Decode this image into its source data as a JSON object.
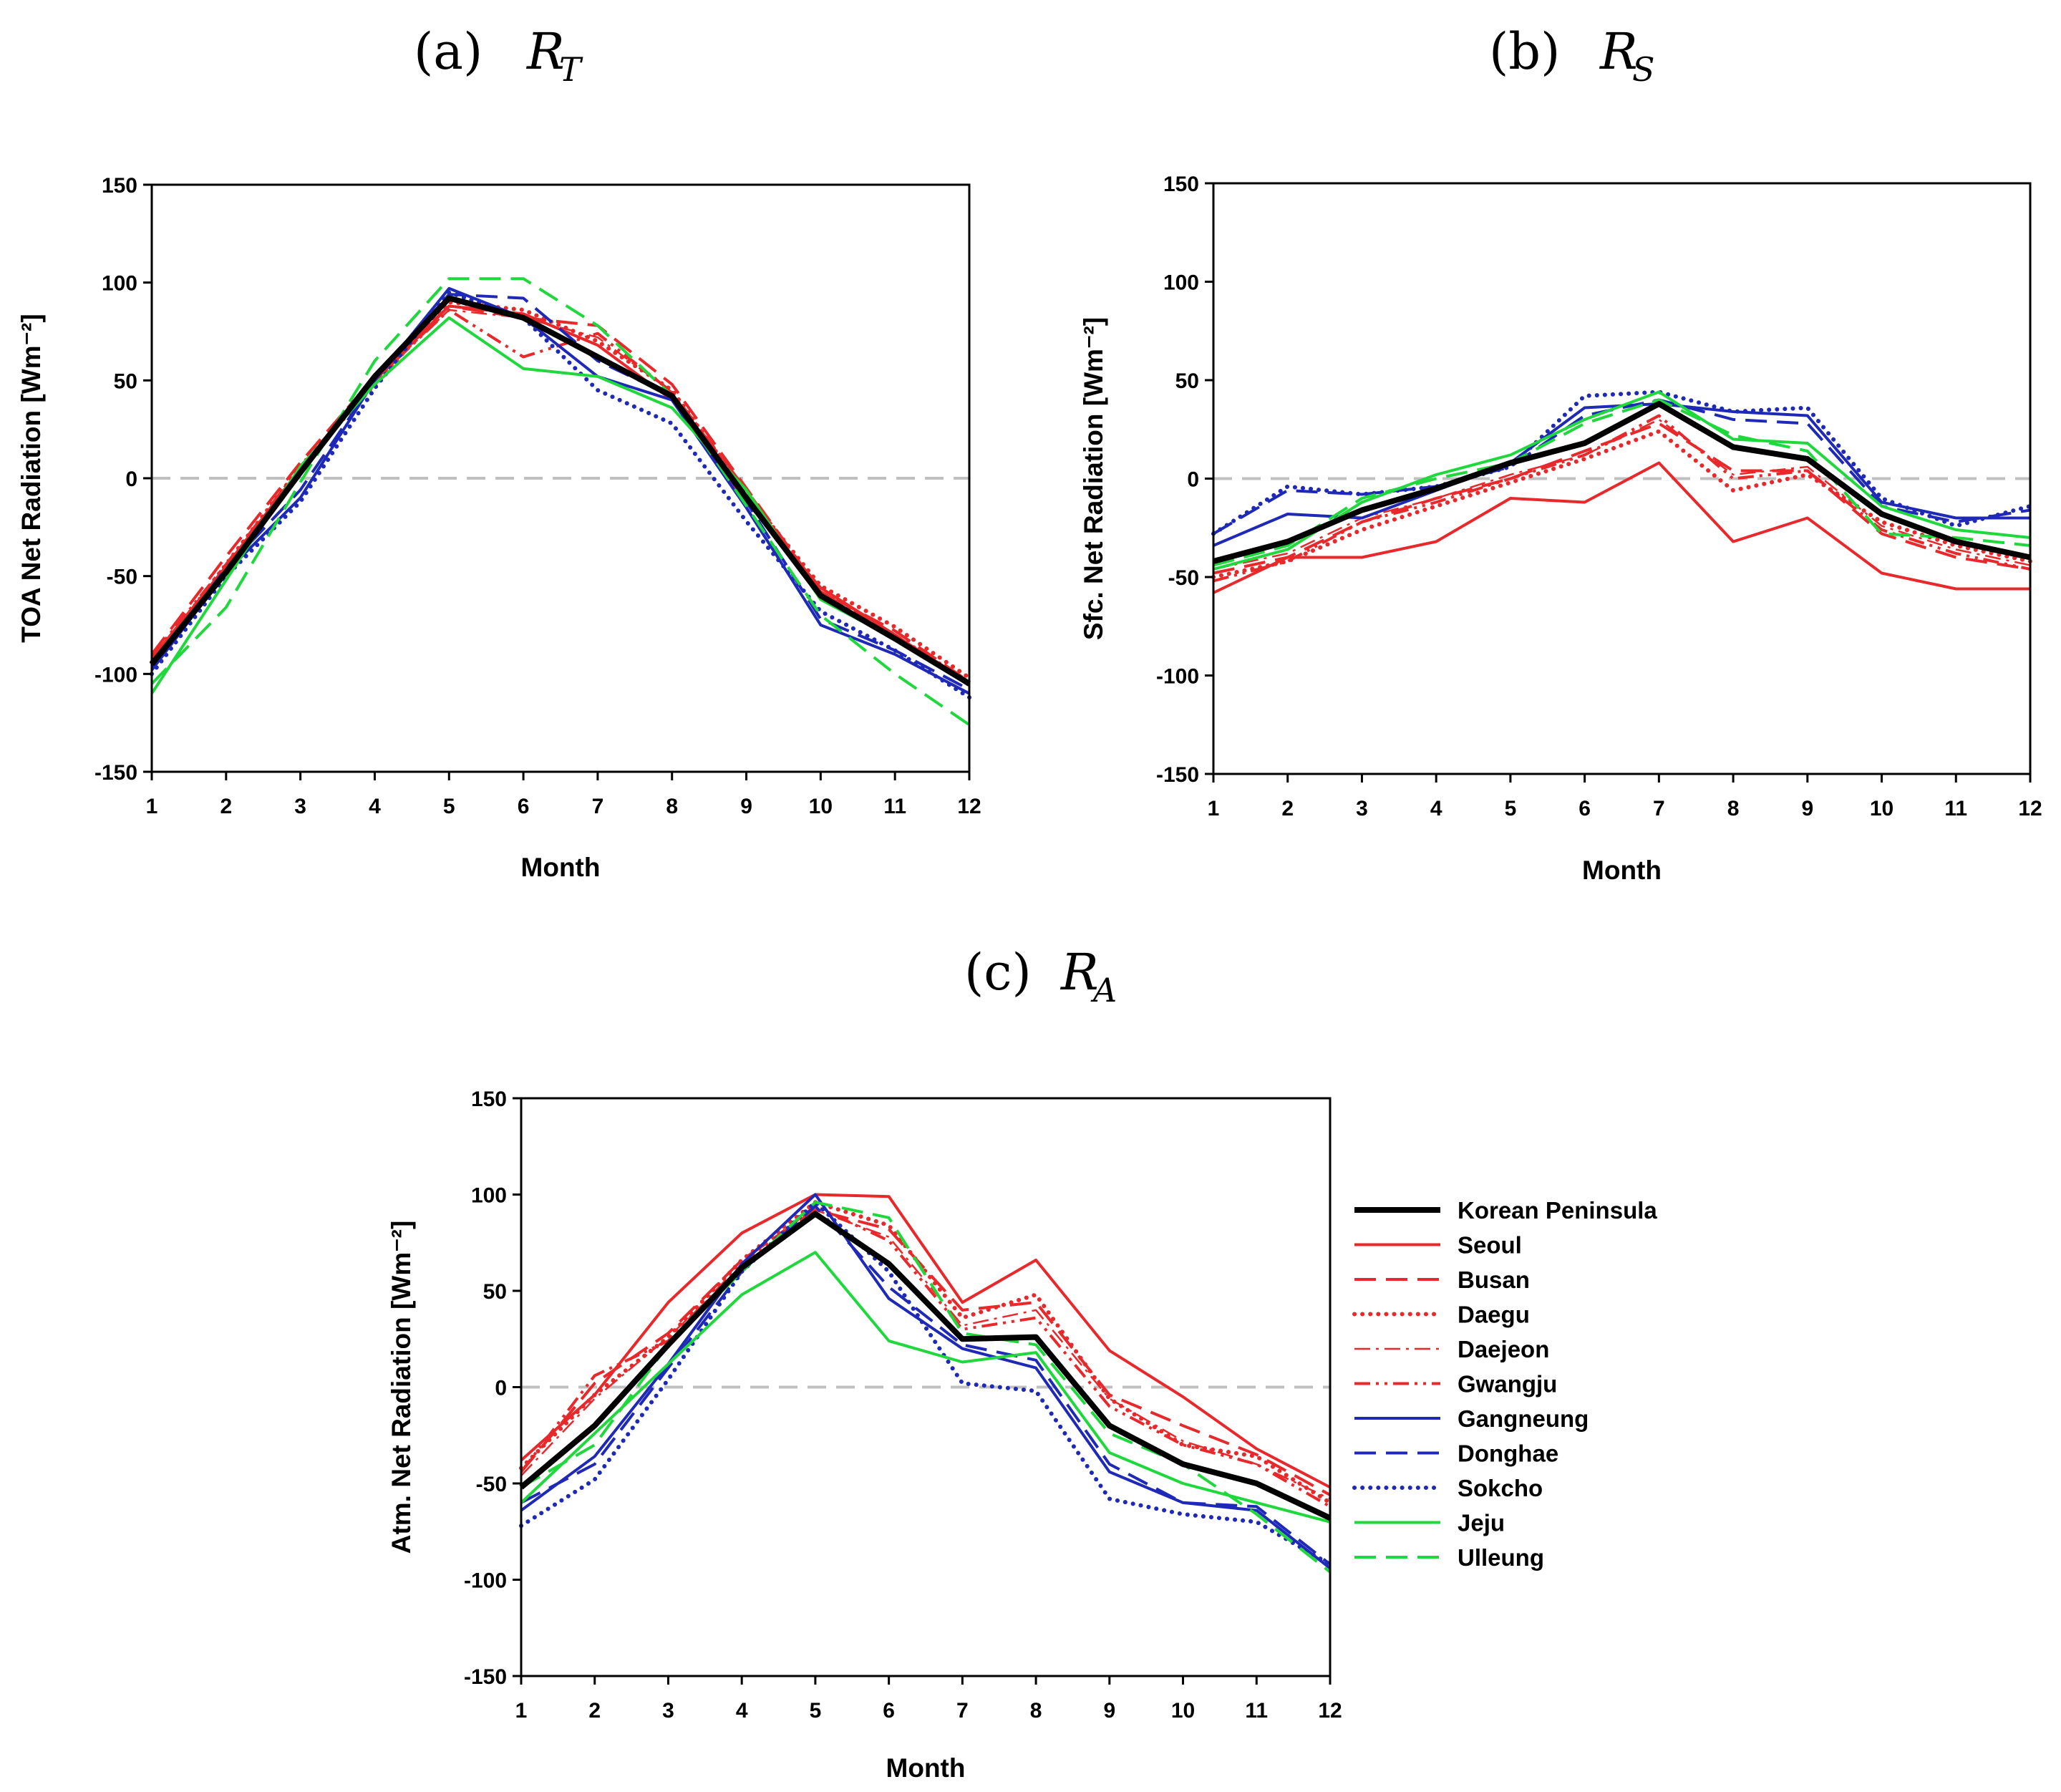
{
  "figure": {
    "colors": {
      "black": "#000000",
      "red": "#e8282a",
      "blue": "#1f29b8",
      "green": "#1ed83c",
      "zero": "#c0c0c0"
    },
    "legend": [
      {
        "name": "Korean Peninsula",
        "color": "black",
        "style": "thick"
      },
      {
        "name": "Seoul",
        "color": "red",
        "style": "solid"
      },
      {
        "name": "Busan",
        "color": "red",
        "style": "longdash"
      },
      {
        "name": "Daegu",
        "color": "red",
        "style": "dot"
      },
      {
        "name": "Daejeon",
        "color": "red",
        "style": "dashdot-thin"
      },
      {
        "name": "Gwangju",
        "color": "red",
        "style": "dashdotdot"
      },
      {
        "name": "Gangneung",
        "color": "blue",
        "style": "solid"
      },
      {
        "name": "Donghae",
        "color": "blue",
        "style": "longdash"
      },
      {
        "name": "Sokcho",
        "color": "blue",
        "style": "dot"
      },
      {
        "name": "Jeju",
        "color": "green",
        "style": "solid"
      },
      {
        "name": "Ulleung",
        "color": "green",
        "style": "longdash"
      }
    ]
  },
  "chart_data": [
    {
      "id": "a",
      "type": "line",
      "panel_label": "(a)",
      "symbol": "R",
      "subscript": "T",
      "xlabel": "Month",
      "ylabel": "TOA Net Radiation [Wm⁻²]",
      "ylim": [
        -150,
        150
      ],
      "xlim": [
        1,
        12
      ],
      "x": [
        1,
        2,
        3,
        4,
        5,
        6,
        7,
        8,
        9,
        10,
        11,
        12
      ],
      "yticks": [
        -150,
        -100,
        -50,
        0,
        50,
        100,
        150
      ],
      "series": [
        {
          "name": "Korean Peninsula",
          "values": [
            -95,
            -48,
            3,
            52,
            92,
            82,
            62,
            42,
            -10,
            -60,
            -82,
            -105
          ]
        },
        {
          "name": "Seoul",
          "values": [
            -92,
            -45,
            5,
            50,
            88,
            84,
            68,
            40,
            -12,
            -56,
            -80,
            -106
          ]
        },
        {
          "name": "Busan",
          "values": [
            -90,
            -40,
            8,
            52,
            88,
            82,
            78,
            48,
            -5,
            -58,
            -78,
            -104
          ]
        },
        {
          "name": "Daegu",
          "values": [
            -94,
            -44,
            6,
            48,
            90,
            86,
            70,
            45,
            -8,
            -55,
            -76,
            -102
          ]
        },
        {
          "name": "Daejeon",
          "values": [
            -92,
            -46,
            4,
            50,
            86,
            82,
            72,
            44,
            -6,
            -58,
            -80,
            -104
          ]
        },
        {
          "name": "Gwangju",
          "values": [
            -91,
            -44,
            6,
            50,
            86,
            62,
            74,
            44,
            -6,
            -58,
            -80,
            -104
          ]
        },
        {
          "name": "Gangneung",
          "values": [
            -98,
            -48,
            -10,
            50,
            97,
            82,
            52,
            40,
            -15,
            -75,
            -90,
            -110
          ]
        },
        {
          "name": "Donghae",
          "values": [
            -96,
            -46,
            -6,
            50,
            94,
            92,
            60,
            42,
            -12,
            -72,
            -88,
            -108
          ]
        },
        {
          "name": "Sokcho",
          "values": [
            -100,
            -50,
            -12,
            46,
            95,
            82,
            45,
            28,
            -22,
            -68,
            -88,
            -112
          ]
        },
        {
          "name": "Jeju",
          "values": [
            -110,
            -52,
            6,
            48,
            82,
            56,
            52,
            36,
            -6,
            -62,
            -82,
            -104
          ]
        },
        {
          "name": "Ulleung",
          "values": [
            -105,
            -66,
            -2,
            60,
            102,
            102,
            78,
            42,
            -14,
            -70,
            -100,
            -126
          ]
        }
      ]
    },
    {
      "id": "b",
      "type": "line",
      "panel_label": "(b)",
      "symbol": "R",
      "subscript": "S",
      "xlabel": "Month",
      "ylabel": "Sfc. Net Radiation [Wm⁻²]",
      "ylim": [
        -150,
        150
      ],
      "xlim": [
        1,
        12
      ],
      "x": [
        1,
        2,
        3,
        4,
        5,
        6,
        7,
        8,
        9,
        10,
        11,
        12
      ],
      "yticks": [
        -150,
        -100,
        -50,
        0,
        50,
        100,
        150
      ],
      "series": [
        {
          "name": "Korean Peninsula",
          "values": [
            -42,
            -32,
            -16,
            -5,
            8,
            18,
            38,
            16,
            10,
            -18,
            -32,
            -40
          ]
        },
        {
          "name": "Seoul",
          "values": [
            -58,
            -40,
            -40,
            -32,
            -10,
            -12,
            8,
            -32,
            -20,
            -48,
            -56,
            -56
          ]
        },
        {
          "name": "Busan",
          "values": [
            -48,
            -40,
            -22,
            -10,
            0,
            14,
            28,
            4,
            4,
            -28,
            -40,
            -46
          ]
        },
        {
          "name": "Daegu",
          "values": [
            -50,
            -42,
            -26,
            -14,
            -2,
            10,
            24,
            -6,
            2,
            -22,
            -34,
            -42
          ]
        },
        {
          "name": "Daejeon",
          "values": [
            -46,
            -38,
            -20,
            -10,
            2,
            12,
            30,
            2,
            6,
            -24,
            -36,
            -44
          ]
        },
        {
          "name": "Gwangju",
          "values": [
            -52,
            -42,
            -22,
            -12,
            0,
            12,
            32,
            0,
            4,
            -26,
            -38,
            -46
          ]
        },
        {
          "name": "Gangneung",
          "values": [
            -34,
            -18,
            -20,
            -6,
            8,
            36,
            38,
            34,
            32,
            -12,
            -20,
            -20
          ]
        },
        {
          "name": "Donghae",
          "values": [
            -28,
            -6,
            -8,
            -4,
            6,
            32,
            40,
            30,
            28,
            -14,
            -22,
            -16
          ]
        },
        {
          "name": "Sokcho",
          "values": [
            -28,
            -4,
            -8,
            -4,
            6,
            42,
            44,
            34,
            36,
            -10,
            -24,
            -14
          ]
        },
        {
          "name": "Jeju",
          "values": [
            -46,
            -36,
            -12,
            2,
            12,
            30,
            44,
            20,
            18,
            -14,
            -26,
            -30
          ]
        },
        {
          "name": "Ulleung",
          "values": [
            -44,
            -34,
            -10,
            0,
            8,
            28,
            40,
            22,
            14,
            -28,
            -30,
            -34
          ]
        }
      ]
    },
    {
      "id": "c",
      "type": "line",
      "panel_label": "(c)",
      "symbol": "R",
      "subscript": "A",
      "xlabel": "Month",
      "ylabel": "Atm. Net Radiation [Wm⁻²]",
      "ylim": [
        -150,
        150
      ],
      "xlim": [
        1,
        12
      ],
      "x": [
        1,
        2,
        3,
        4,
        5,
        6,
        7,
        8,
        9,
        10,
        11,
        12
      ],
      "yticks": [
        -150,
        -100,
        -50,
        0,
        50,
        100,
        150
      ],
      "series": [
        {
          "name": "Korean Peninsula",
          "values": [
            -52,
            -20,
            22,
            62,
            90,
            64,
            25,
            26,
            -20,
            -40,
            -50,
            -68
          ]
        },
        {
          "name": "Seoul",
          "values": [
            -38,
            -4,
            44,
            80,
            100,
            99,
            44,
            66,
            19,
            -5,
            -32,
            -52
          ]
        },
        {
          "name": "Busan",
          "values": [
            -44,
            2,
            28,
            66,
            92,
            82,
            40,
            44,
            -4,
            -20,
            -35,
            -56
          ]
        },
        {
          "name": "Daegu",
          "values": [
            -42,
            -4,
            26,
            66,
            96,
            84,
            36,
            48,
            -6,
            -30,
            -36,
            -60
          ]
        },
        {
          "name": "Daejeon",
          "values": [
            -46,
            -6,
            26,
            62,
            92,
            78,
            32,
            40,
            -6,
            -28,
            -40,
            -58
          ]
        },
        {
          "name": "Gwangju",
          "values": [
            -44,
            6,
            24,
            64,
            94,
            76,
            30,
            36,
            -10,
            -30,
            -40,
            -62
          ]
        },
        {
          "name": "Gangneung",
          "values": [
            -64,
            -36,
            12,
            64,
            100,
            46,
            20,
            10,
            -44,
            -60,
            -64,
            -94
          ]
        },
        {
          "name": "Donghae",
          "values": [
            -60,
            -40,
            10,
            60,
            94,
            52,
            22,
            14,
            -40,
            -60,
            -62,
            -92
          ]
        },
        {
          "name": "Sokcho",
          "values": [
            -72,
            -48,
            4,
            60,
            96,
            60,
            2,
            -2,
            -58,
            -66,
            -70,
            -92
          ]
        },
        {
          "name": "Jeju",
          "values": [
            -60,
            -24,
            12,
            48,
            70,
            24,
            13,
            18,
            -34,
            -50,
            -60,
            -70
          ]
        },
        {
          "name": "Ulleung",
          "values": [
            -52,
            -30,
            22,
            60,
            96,
            88,
            28,
            22,
            -24,
            -40,
            -66,
            -96
          ]
        }
      ]
    }
  ]
}
